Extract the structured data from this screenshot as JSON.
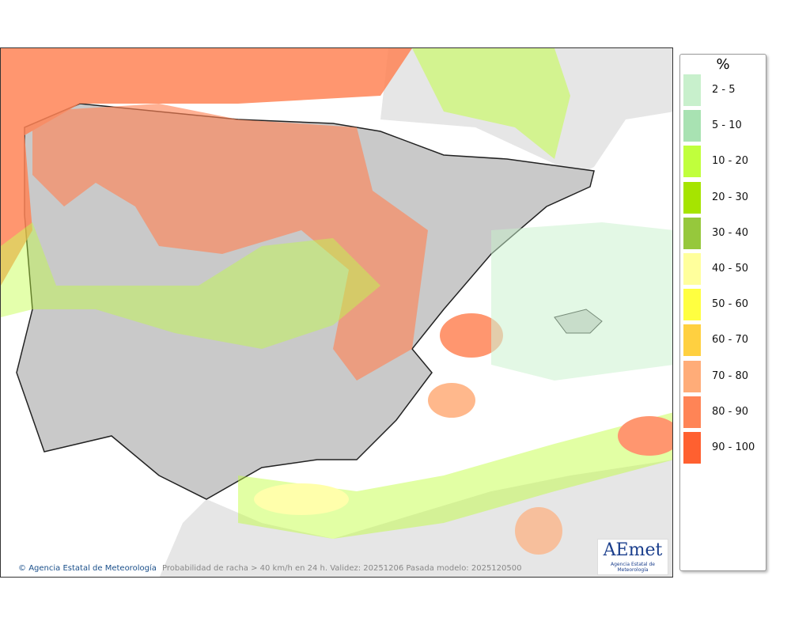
{
  "legend": {
    "title": "%",
    "items": [
      {
        "label": "2 - 5",
        "color": "#c8f0cc"
      },
      {
        "label": "5 - 10",
        "color": "#a8e2b2"
      },
      {
        "label": "10 - 20",
        "color": "#c0ff3c"
      },
      {
        "label": "20 - 30",
        "color": "#a6e400"
      },
      {
        "label": "30 - 40",
        "color": "#96c83c"
      },
      {
        "label": "40 - 50",
        "color": "#ffff9c"
      },
      {
        "label": "50 - 60",
        "color": "#ffff40"
      },
      {
        "label": "60 - 70",
        "color": "#ffd040"
      },
      {
        "label": "70 - 80",
        "color": "#ffac78"
      },
      {
        "label": "80 - 90",
        "color": "#ff8456"
      },
      {
        "label": "90 - 100",
        "color": "#ff6030"
      }
    ]
  },
  "footer": {
    "credit": "Agencia Estatal de Meteorología",
    "caption": "Probabilidad de racha > 40 km/h en 24 h. Validez: 20251206 Pasada modelo: 2025120500"
  },
  "logo": {
    "name": "AEmet",
    "subtitle": "Agencia Estatal de Meteorología"
  }
}
